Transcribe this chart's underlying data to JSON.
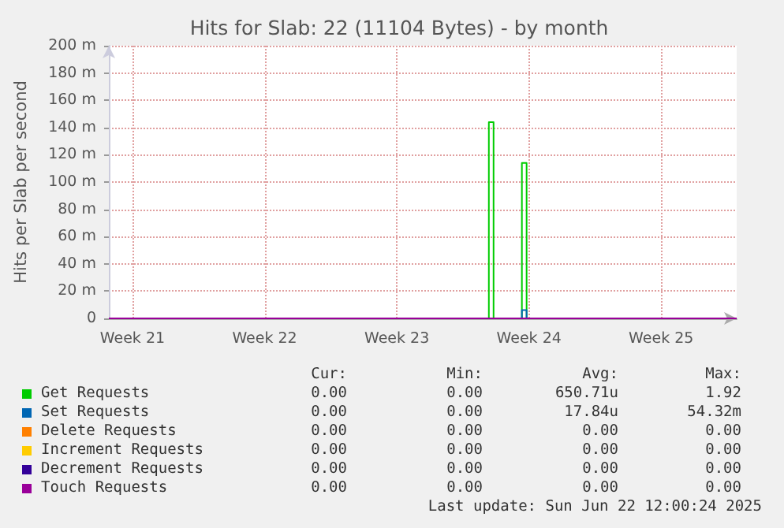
{
  "chart_data": {
    "type": "step",
    "title": "Hits for Slab: 22 (11104 Bytes) - by month",
    "ylabel": "Hits per Slab per second",
    "categories": [
      null,
      null,
      null,
      null,
      null,
      "Week 21",
      null,
      null,
      null,
      null,
      null,
      null,
      null,
      null,
      null,
      null,
      null,
      null,
      null,
      null,
      null,
      null,
      null,
      null,
      null,
      null,
      null,
      null,
      null,
      null,
      null,
      null,
      null,
      "Week 22",
      null,
      null,
      null,
      null,
      null,
      null,
      null,
      null,
      null,
      null,
      null,
      null,
      null,
      null,
      null,
      null,
      null,
      null,
      null,
      null,
      null,
      null,
      null,
      null,
      null,
      null,
      null,
      "Week 23",
      null,
      null,
      null,
      null,
      null,
      null,
      null,
      null,
      null,
      null,
      null,
      null,
      null,
      null,
      null,
      null,
      null,
      null,
      null,
      null,
      null,
      null,
      null,
      null,
      null,
      null,
      null,
      "Week 24",
      null,
      null,
      null,
      null,
      null,
      null,
      null,
      null,
      null,
      null,
      null,
      null,
      null,
      null,
      null,
      null,
      null,
      null,
      null,
      null,
      null,
      null,
      null,
      null,
      null,
      null,
      null,
      "Week 25",
      null,
      null,
      null,
      null,
      null,
      null,
      null,
      null,
      null,
      null,
      null,
      null,
      null,
      null,
      null,
      null
    ],
    "ylim": [
      0,
      200
    ],
    "yticks": [
      0,
      {
        "value": 20,
        "label": "20 m"
      },
      {
        "value": 40,
        "label": "40 m"
      },
      {
        "value": 60,
        "label": "60 m"
      },
      {
        "value": 80,
        "label": "80 m"
      },
      {
        "value": 100,
        "label": "100 m"
      },
      {
        "value": 120,
        "label": "120 m"
      },
      {
        "value": 140,
        "label": "140 m"
      },
      {
        "value": 160,
        "label": "160 m"
      },
      {
        "value": 180,
        "label": "180 m"
      },
      {
        "value": 200,
        "label": "200 m"
      }
    ],
    "grid": true,
    "legend": "bottom",
    "marker": "none",
    "series": [
      {
        "name": "Get Requests",
        "color": "#00cc00",
        "values": [
          null,
          null,
          null,
          null,
          null,
          null,
          null,
          null,
          null,
          null,
          null,
          null,
          null,
          null,
          null,
          null,
          null,
          null,
          null,
          null,
          null,
          null,
          null,
          null,
          null,
          null,
          null,
          null,
          null,
          null,
          null,
          null,
          null,
          null,
          null,
          null,
          null,
          null,
          null,
          null,
          null,
          null,
          null,
          null,
          null,
          null,
          null,
          null,
          null,
          null,
          null,
          null,
          null,
          null,
          null,
          null,
          null,
          null,
          null,
          null,
          null,
          null,
          null,
          null,
          null,
          null,
          null,
          null,
          null,
          null,
          null,
          null,
          null,
          null,
          null,
          null,
          null,
          null,
          null,
          null,
          0,
          144,
          0,
          null,
          null,
          null,
          null,
          0,
          114,
          0,
          null,
          null,
          null,
          null,
          null,
          null,
          null,
          null,
          null,
          null,
          null,
          null,
          null,
          null,
          null,
          null,
          null,
          null,
          null,
          null,
          null,
          null,
          null,
          null,
          null,
          null,
          null,
          null,
          null,
          null,
          null,
          null,
          null,
          null,
          null,
          null,
          null,
          null,
          null,
          null,
          null,
          null,
          null,
          null
        ]
      },
      {
        "name": "Set Requests",
        "color": "#0066b3",
        "values": [
          null,
          null,
          null,
          null,
          null,
          null,
          null,
          null,
          null,
          null,
          null,
          null,
          null,
          null,
          null,
          null,
          null,
          null,
          null,
          null,
          null,
          null,
          null,
          null,
          null,
          null,
          null,
          null,
          null,
          null,
          null,
          null,
          null,
          null,
          null,
          null,
          null,
          null,
          null,
          null,
          null,
          null,
          null,
          null,
          null,
          null,
          null,
          null,
          null,
          null,
          null,
          null,
          null,
          null,
          null,
          null,
          null,
          null,
          null,
          null,
          null,
          null,
          null,
          null,
          null,
          null,
          null,
          null,
          null,
          null,
          null,
          null,
          null,
          null,
          null,
          null,
          null,
          null,
          null,
          null,
          null,
          null,
          null,
          null,
          null,
          null,
          null,
          0,
          6,
          0,
          null,
          null,
          null,
          null,
          null,
          null,
          null,
          null,
          null,
          null,
          null,
          null,
          null,
          null,
          null,
          null,
          null,
          null,
          null,
          null,
          null,
          null,
          null,
          null,
          null,
          null,
          null,
          null,
          null,
          null,
          null,
          null,
          null,
          null,
          null,
          null,
          null,
          null,
          null,
          null,
          null,
          null,
          null,
          null
        ]
      },
      {
        "name": "Delete Requests",
        "color": "#ff8000",
        "values": [
          null,
          null,
          null,
          null,
          null,
          null,
          null,
          null,
          null,
          null,
          null,
          null,
          null,
          null,
          null,
          null,
          null,
          null,
          null,
          null,
          null,
          null,
          null,
          null,
          null,
          null,
          null,
          null,
          null,
          null,
          null,
          null,
          null,
          null,
          null,
          null,
          null,
          null,
          null,
          null,
          null,
          null,
          null,
          null,
          null,
          null,
          null,
          null,
          null,
          null,
          null,
          null,
          null,
          null,
          null,
          null,
          null,
          null,
          null,
          null,
          null,
          null,
          null,
          null,
          null,
          null,
          null,
          null,
          null,
          null,
          null,
          null,
          null,
          null,
          null,
          null,
          null,
          null,
          null,
          null,
          null,
          null,
          null,
          null,
          null,
          null,
          null,
          null,
          null,
          null,
          null,
          null,
          null,
          null,
          null,
          null,
          null,
          null,
          null,
          null,
          null,
          null,
          null,
          null,
          null,
          null,
          null,
          null,
          null,
          null,
          null,
          null,
          null,
          null,
          null,
          null,
          null,
          null,
          null,
          null,
          null,
          null,
          null,
          null,
          null,
          null,
          null,
          null,
          null,
          null,
          null,
          null,
          null,
          null
        ]
      },
      {
        "name": "Increment Requests",
        "color": "#ffcc00",
        "values": [
          null,
          null,
          null,
          null,
          null,
          null,
          null,
          null,
          null,
          null,
          null,
          null,
          null,
          null,
          null,
          null,
          null,
          null,
          null,
          null,
          null,
          null,
          null,
          null,
          null,
          null,
          null,
          null,
          null,
          null,
          null,
          null,
          null,
          null,
          null,
          null,
          null,
          null,
          null,
          null,
          null,
          null,
          null,
          null,
          null,
          null,
          null,
          null,
          null,
          null,
          null,
          null,
          null,
          null,
          null,
          null,
          null,
          null,
          null,
          null,
          null,
          null,
          null,
          null,
          null,
          null,
          null,
          null,
          null,
          null,
          null,
          null,
          null,
          null,
          null,
          null,
          null,
          null,
          null,
          null,
          null,
          null,
          null,
          null,
          null,
          null,
          null,
          null,
          null,
          null,
          null,
          null,
          null,
          null,
          null,
          null,
          null,
          null,
          null,
          null,
          null,
          null,
          null,
          null,
          null,
          null,
          null,
          null,
          null,
          null,
          null,
          null,
          null,
          null,
          null,
          null,
          null,
          null,
          null,
          null,
          null,
          null,
          null,
          null,
          null,
          null,
          null,
          null,
          null,
          null,
          null,
          null,
          null,
          null
        ]
      },
      {
        "name": "Decrement Requests",
        "color": "#330099",
        "values": [
          null,
          null,
          null,
          null,
          null,
          null,
          null,
          null,
          null,
          null,
          null,
          null,
          null,
          null,
          null,
          null,
          null,
          null,
          null,
          null,
          null,
          null,
          null,
          null,
          null,
          null,
          null,
          null,
          null,
          null,
          null,
          null,
          null,
          null,
          null,
          null,
          null,
          null,
          null,
          null,
          null,
          null,
          null,
          null,
          null,
          null,
          null,
          null,
          null,
          null,
          null,
          null,
          null,
          null,
          null,
          null,
          null,
          null,
          null,
          null,
          null,
          null,
          null,
          null,
          null,
          null,
          null,
          null,
          null,
          null,
          null,
          null,
          null,
          null,
          null,
          null,
          null,
          null,
          null,
          null,
          null,
          null,
          null,
          null,
          null,
          null,
          null,
          null,
          null,
          null,
          null,
          null,
          null,
          null,
          null,
          null,
          null,
          null,
          null,
          null,
          null,
          null,
          null,
          null,
          null,
          null,
          null,
          null,
          null,
          null,
          null,
          null,
          null,
          null,
          null,
          null,
          null,
          null,
          null,
          null,
          null,
          null,
          null,
          null,
          null,
          null,
          null,
          null,
          null,
          null,
          null,
          null,
          null,
          null
        ]
      },
      {
        "name": "Touch Requests",
        "color": "#990099",
        "values": [
          0,
          0,
          0,
          0,
          0,
          0,
          0,
          0,
          0,
          0,
          0,
          0,
          0,
          0,
          0,
          0,
          0,
          0,
          0,
          0,
          0,
          0,
          0,
          0,
          0,
          0,
          0,
          0,
          0,
          0,
          0,
          0,
          0,
          0,
          0,
          0,
          0,
          0,
          0,
          0,
          0,
          0,
          0,
          0,
          0,
          0,
          0,
          0,
          0,
          0,
          0,
          0,
          0,
          0,
          0,
          0,
          0,
          0,
          0,
          0,
          0,
          0,
          0,
          0,
          0,
          0,
          0,
          0,
          0,
          0,
          0,
          0,
          0,
          0,
          0,
          0,
          0,
          0,
          0,
          0,
          0,
          0,
          0,
          0,
          0,
          0,
          0,
          0,
          0,
          0,
          0,
          0,
          0,
          0,
          0,
          0,
          0,
          0,
          0,
          0,
          0,
          0,
          0,
          0,
          0,
          0,
          0,
          0,
          0,
          0,
          0,
          0,
          0,
          0,
          0,
          0,
          0,
          0,
          0,
          0,
          0,
          0,
          0,
          0,
          0,
          0,
          0,
          0,
          0,
          0,
          0,
          0,
          0,
          0
        ]
      }
    ],
    "annotations": [
      "Cur:",
      "Min:",
      "Avg:",
      "Max:",
      "0.00",
      "0.00",
      "650.71u",
      "1.92",
      "0.00",
      "0.00",
      "17.84u",
      "54.32m",
      "0.00",
      "0.00",
      "0.00",
      "0.00",
      "0.00",
      "0.00",
      "0.00",
      "0.00",
      "0.00",
      "0.00",
      "0.00",
      "0.00",
      "0.00",
      "0.00",
      "0.00",
      "0.00",
      "Last update: Sun Jun 22 12:00:24 2025"
    ]
  }
}
